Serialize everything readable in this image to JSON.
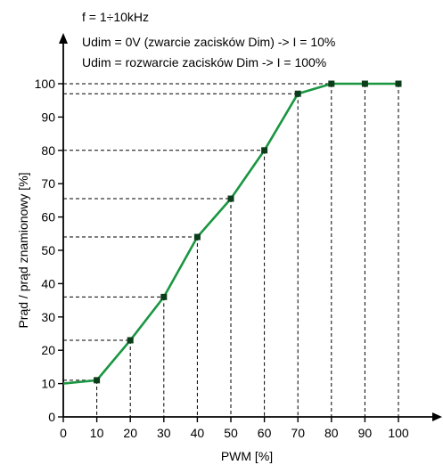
{
  "chart_data": {
    "type": "line",
    "annotations": [
      "f = 1÷10kHz",
      "Udim = 0V (zwarcie zacisków Dim) -> I = 10%",
      "Udim = rozwarcie zacisków Dim -> I = 100%"
    ],
    "xlabel": "PWM [%]",
    "ylabel": "Prąd / prąd znamionowy [%]",
    "x": [
      0,
      10,
      20,
      30,
      40,
      50,
      60,
      70,
      80,
      90,
      100
    ],
    "y": [
      10,
      11,
      23,
      36,
      54,
      65.5,
      80,
      97,
      100,
      100,
      100
    ],
    "xlim": [
      0,
      100
    ],
    "ylim": [
      0,
      100
    ],
    "x_ticks": [
      "0",
      "10",
      "20",
      "30",
      "40",
      "50",
      "60",
      "70",
      "80",
      "90",
      "100"
    ],
    "y_ticks": [
      "0",
      "10",
      "20",
      "30",
      "40",
      "50",
      "60",
      "70",
      "80",
      "90",
      "100"
    ],
    "grid": false,
    "guide_lines": "dashed",
    "colors": {
      "line": "#1a9641",
      "marker": "#0b3d1a",
      "axis": "#000000",
      "guide": "#000000"
    }
  }
}
